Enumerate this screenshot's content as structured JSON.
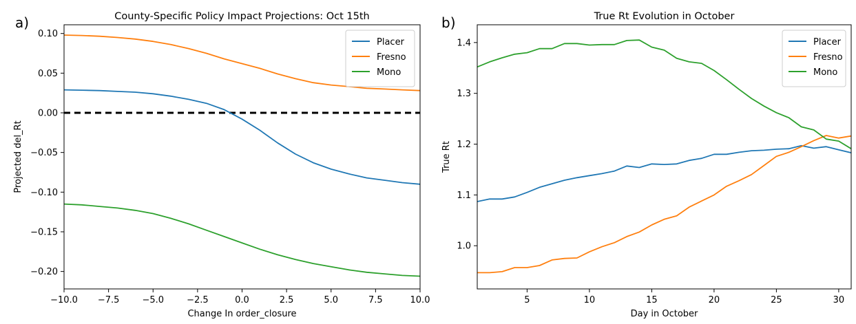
{
  "chart_data": [
    {
      "panel_label": "a)",
      "type": "line",
      "title": "County-Specific Policy Impact Projections: Oct 15th",
      "xlabel": "Change In order_closure",
      "ylabel": "Projected del_Rt",
      "xlim": [
        -10,
        10
      ],
      "ylim": [
        -0.222,
        0.111
      ],
      "xticks": [
        -10,
        -7.5,
        -5,
        -2.5,
        0,
        2.5,
        5,
        7.5,
        10
      ],
      "xtick_labels": [
        "−10.0",
        "−7.5",
        "−5.0",
        "−2.5",
        "0.0",
        "2.5",
        "5.0",
        "7.5",
        "10.0"
      ],
      "yticks": [
        0.1,
        0.05,
        0.0,
        -0.05,
        -0.1,
        -0.15,
        -0.2
      ],
      "ytick_labels": [
        "0.10",
        "0.05",
        "0.00",
        "−0.05",
        "−0.10",
        "−0.15",
        "−0.20"
      ],
      "grid": false,
      "legend_position": "top-right",
      "reference_line": {
        "y": 0,
        "style": "dashed",
        "color": "#000000"
      },
      "series": [
        {
          "name": "Placer",
          "color": "#1f77b4",
          "x": [
            -10,
            -9,
            -8,
            -7,
            -6,
            -5,
            -4,
            -3,
            -2,
            -1,
            0,
            1,
            2,
            3,
            4,
            5,
            6,
            7,
            8,
            9,
            10
          ],
          "y": [
            0.029,
            0.0285,
            0.028,
            0.027,
            0.026,
            0.024,
            0.021,
            0.017,
            0.012,
            0.004,
            -0.008,
            -0.022,
            -0.038,
            -0.052,
            -0.063,
            -0.071,
            -0.077,
            -0.082,
            -0.085,
            -0.088,
            -0.09
          ]
        },
        {
          "name": "Fresno",
          "color": "#ff7f0e",
          "x": [
            -10,
            -9,
            -8,
            -7,
            -6,
            -5,
            -4,
            -3,
            -2,
            -1,
            0,
            1,
            2,
            3,
            4,
            5,
            6,
            7,
            8,
            9,
            10
          ],
          "y": [
            0.098,
            0.0975,
            0.0965,
            0.095,
            0.093,
            0.09,
            0.086,
            0.081,
            0.075,
            0.068,
            0.062,
            0.056,
            0.049,
            0.043,
            0.038,
            0.035,
            0.033,
            0.031,
            0.03,
            0.029,
            0.028
          ]
        },
        {
          "name": "Mono",
          "color": "#2ca02c",
          "x": [
            -10,
            -9,
            -8,
            -7,
            -6,
            -5,
            -4,
            -3,
            -2,
            -1,
            0,
            1,
            2,
            3,
            4,
            5,
            6,
            7,
            8,
            9,
            10
          ],
          "y": [
            -0.115,
            -0.116,
            -0.118,
            -0.12,
            -0.123,
            -0.127,
            -0.133,
            -0.14,
            -0.148,
            -0.156,
            -0.164,
            -0.172,
            -0.179,
            -0.185,
            -0.19,
            -0.194,
            -0.198,
            -0.201,
            -0.203,
            -0.205,
            -0.206
          ]
        }
      ]
    },
    {
      "panel_label": "b)",
      "type": "line",
      "title": "True Rt Evolution in October",
      "xlabel": "Day in October",
      "ylabel": "True Rt",
      "xlim": [
        1,
        31
      ],
      "ylim": [
        0.915,
        1.435
      ],
      "xticks": [
        5,
        10,
        15,
        20,
        25,
        30
      ],
      "xtick_labels": [
        "5",
        "10",
        "15",
        "20",
        "25",
        "30"
      ],
      "yticks": [
        1.0,
        1.1,
        1.2,
        1.3,
        1.4
      ],
      "ytick_labels": [
        "1.0",
        "1.1",
        "1.2",
        "1.3",
        "1.4"
      ],
      "grid": false,
      "legend_position": "top-right",
      "series": [
        {
          "name": "Placer",
          "color": "#1f77b4",
          "x": [
            1,
            2,
            3,
            4,
            5,
            6,
            7,
            8,
            9,
            10,
            11,
            12,
            13,
            14,
            15,
            16,
            17,
            18,
            19,
            20,
            21,
            22,
            23,
            24,
            25,
            26,
            27,
            28,
            29,
            30,
            31
          ],
          "y": [
            1.087,
            1.092,
            1.092,
            1.096,
            1.105,
            1.115,
            1.122,
            1.129,
            1.134,
            1.138,
            1.142,
            1.147,
            1.157,
            1.154,
            1.161,
            1.16,
            1.161,
            1.168,
            1.172,
            1.18,
            1.18,
            1.184,
            1.187,
            1.188,
            1.19,
            1.191,
            1.197,
            1.192,
            1.195,
            1.189,
            1.183
          ]
        },
        {
          "name": "Fresno",
          "color": "#ff7f0e",
          "x": [
            1,
            2,
            3,
            4,
            5,
            6,
            7,
            8,
            9,
            10,
            11,
            12,
            13,
            14,
            15,
            16,
            17,
            18,
            19,
            20,
            21,
            22,
            23,
            24,
            25,
            26,
            27,
            28,
            29,
            30,
            31
          ],
          "y": [
            0.947,
            0.947,
            0.949,
            0.957,
            0.957,
            0.961,
            0.972,
            0.975,
            0.976,
            0.988,
            0.998,
            1.006,
            1.018,
            1.027,
            1.041,
            1.052,
            1.059,
            1.076,
            1.088,
            1.1,
            1.117,
            1.128,
            1.14,
            1.158,
            1.176,
            1.184,
            1.195,
            1.207,
            1.217,
            1.212,
            1.216
          ]
        },
        {
          "name": "Mono",
          "color": "#2ca02c",
          "x": [
            1,
            2,
            3,
            4,
            5,
            6,
            7,
            8,
            9,
            10,
            11,
            12,
            13,
            14,
            15,
            16,
            17,
            18,
            19,
            20,
            21,
            22,
            23,
            24,
            25,
            26,
            27,
            28,
            29,
            30,
            31
          ],
          "y": [
            1.352,
            1.362,
            1.37,
            1.377,
            1.38,
            1.388,
            1.388,
            1.398,
            1.398,
            1.395,
            1.396,
            1.396,
            1.404,
            1.405,
            1.391,
            1.385,
            1.369,
            1.362,
            1.359,
            1.345,
            1.327,
            1.308,
            1.29,
            1.275,
            1.262,
            1.252,
            1.234,
            1.228,
            1.21,
            1.206,
            1.191
          ]
        }
      ]
    }
  ]
}
